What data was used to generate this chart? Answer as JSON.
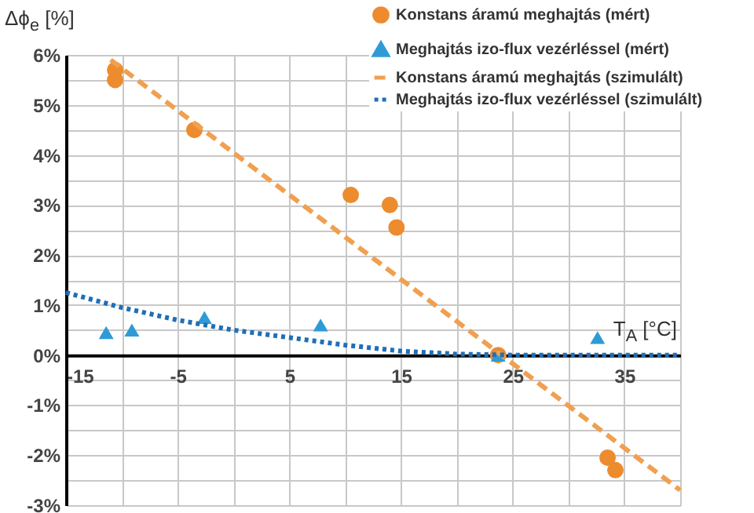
{
  "chart_data": {
    "type": "scatter",
    "xlabel": "T$_{A}$ [°C]",
    "ylabel": "Δϕ$_{e}$ [%]",
    "xlim": [
      -15,
      40
    ],
    "xticks": [
      -15,
      {
        "value": -10,
        "label": null
      },
      -5,
      {
        "value": 0,
        "label": null
      },
      5,
      {
        "value": 10,
        "label": null
      },
      15,
      {
        "value": 20,
        "label": null
      },
      25,
      {
        "value": 30,
        "label": null
      },
      35,
      {
        "value": 40,
        "label": null
      }
    ],
    "ylim": [
      -3,
      6
    ],
    "yticks": [
      {
        "value": -3,
        "label": "-3%"
      },
      {
        "value": -2.5,
        "label": null
      },
      {
        "value": -2,
        "label": "-2%"
      },
      {
        "value": -1.5,
        "label": null
      },
      {
        "value": -1,
        "label": "-1%"
      },
      {
        "value": -0.5,
        "label": null
      },
      {
        "value": 0,
        "label": "0%"
      },
      {
        "value": 0.5,
        "label": null
      },
      {
        "value": 1,
        "label": "1%"
      },
      {
        "value": 1.5,
        "label": null
      },
      {
        "value": 2,
        "label": "2%"
      },
      {
        "value": 2.5,
        "label": null
      },
      {
        "value": 3,
        "label": "3%"
      },
      {
        "value": 3.5,
        "label": null
      },
      {
        "value": 4,
        "label": "4%"
      },
      {
        "value": 4.5,
        "label": null
      },
      {
        "value": 5,
        "label": "5%"
      },
      {
        "value": 5.5,
        "label": null
      },
      {
        "value": 6,
        "label": "6%"
      }
    ],
    "grid": true,
    "legend": "top right",
    "series": [
      {
        "name": "Konstans áramú meghajtás (mért)",
        "type": "scatter",
        "marker": "circle",
        "color": "#ed8b2f",
        "x": [
          -10.6,
          -10.6,
          -3.5,
          10.5,
          14.0,
          14.6,
          23.7,
          33.5,
          34.2
        ],
        "values": [
          5.7,
          5.5,
          4.5,
          3.2,
          3.0,
          2.55,
          0,
          -2.05,
          -2.3
        ]
      },
      {
        "name": "Meghajtás izo-flux vezérléssel (mért)",
        "type": "scatter",
        "marker": "triangle",
        "color": "#2e9bd6",
        "x": [
          -11.4,
          -9.1,
          -2.6,
          7.8,
          23.7,
          32.6
        ],
        "values": [
          0.45,
          0.5,
          0.75,
          0.6,
          0,
          0.35
        ]
      },
      {
        "name": "Konstans áramú meghajtás (szimulált)",
        "type": "line",
        "line_style": "dashed",
        "color": "#f0a050",
        "x": [
          -11,
          40
        ],
        "values": [
          5.9,
          -2.7
        ]
      },
      {
        "name": "Meghajtás izo-flux vezérléssel (szimulált)",
        "type": "line",
        "line_style": "dotted",
        "color": "#1f6fb8",
        "x": [
          -15,
          -10,
          -5,
          0,
          5,
          10,
          15,
          20,
          25,
          40
        ],
        "values": [
          1.25,
          0.95,
          0.7,
          0.5,
          0.35,
          0.2,
          0.08,
          0.02,
          0,
          0
        ]
      }
    ]
  }
}
